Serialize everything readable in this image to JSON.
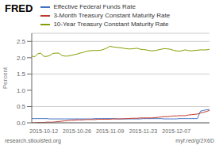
{
  "chart_data": {
    "type": "line",
    "title": "FRED",
    "y_label": "Percent",
    "annotations": [
      "research.stlouisfed.org",
      "myf.red/g/2X6D"
    ],
    "legend": "top",
    "grid": true,
    "ylim": [
      0.0,
      2.75
    ],
    "yticks": [
      {
        "value": 0.0,
        "label": "0.0"
      },
      0.5,
      {
        "value": 1.0,
        "label": "1.0"
      },
      1.5,
      {
        "value": 2.0,
        "label": "2.0"
      },
      2.5
    ],
    "categories": [
      null,
      null,
      null,
      null,
      "2015-10-12",
      null,
      null,
      null,
      null,
      null,
      null,
      null,
      null,
      null,
      null,
      "2015-10-26",
      null,
      null,
      null,
      null,
      null,
      null,
      null,
      null,
      null,
      null,
      "2015-11-09",
      null,
      null,
      null,
      null,
      null,
      null,
      null,
      null,
      null,
      null,
      "2015-11-23",
      null,
      null,
      null,
      null,
      null,
      null,
      null,
      null,
      null,
      null,
      "2015-12-07",
      null,
      null,
      null,
      null,
      null,
      null,
      null,
      null,
      null,
      null,
      null
    ],
    "series": [
      {
        "name": "Effective Federal Funds Rate",
        "color": "#4472c4",
        "values": [
          0.13,
          0.13,
          0.13,
          0.13,
          0.13,
          0.13,
          0.12,
          0.12,
          0.12,
          0.12,
          0.12,
          0.12,
          0.12,
          0.12,
          0.12,
          0.12,
          0.12,
          0.12,
          0.12,
          0.12,
          0.12,
          0.13,
          0.13,
          0.13,
          0.13,
          0.13,
          0.13,
          0.13,
          0.12,
          0.12,
          0.12,
          0.12,
          0.12,
          0.12,
          0.12,
          0.12,
          0.12,
          0.13,
          0.13,
          0.13,
          0.13,
          0.13,
          0.13,
          0.13,
          0.12,
          0.12,
          0.12,
          0.12,
          0.12,
          0.13,
          0.13,
          0.13,
          0.13,
          0.13,
          0.13,
          0.13,
          0.36,
          0.38,
          0.4,
          0.41
        ]
      },
      {
        "name": "3-Month Treasury Constant Maturity Rate",
        "color": "#c0392b",
        "values": [
          0.0,
          0.0,
          0.01,
          0.01,
          0.01,
          0.02,
          0.02,
          0.02,
          0.03,
          0.04,
          0.05,
          0.06,
          0.07,
          0.08,
          0.08,
          0.09,
          0.09,
          0.09,
          0.1,
          0.1,
          0.1,
          0.1,
          0.11,
          0.11,
          0.11,
          0.11,
          0.11,
          0.12,
          0.12,
          0.12,
          0.12,
          0.13,
          0.13,
          0.14,
          0.14,
          0.14,
          0.15,
          0.15,
          0.15,
          0.15,
          0.15,
          0.16,
          0.17,
          0.18,
          0.19,
          0.19,
          0.2,
          0.21,
          0.21,
          0.22,
          0.22,
          0.22,
          0.24,
          0.25,
          0.26,
          0.27,
          0.3,
          0.32,
          0.35,
          0.38
        ]
      },
      {
        "name": "10-Year Treasury Constant Maturity Rate",
        "color": "#7f9f00",
        "values": [
          2.05,
          2.03,
          2.12,
          2.14,
          2.04,
          2.04,
          2.07,
          2.13,
          2.14,
          2.14,
          2.07,
          2.05,
          2.05,
          2.07,
          2.09,
          2.11,
          2.14,
          2.16,
          2.19,
          2.21,
          2.22,
          2.22,
          2.22,
          2.23,
          2.26,
          2.3,
          2.35,
          2.33,
          2.32,
          2.31,
          2.3,
          2.28,
          2.27,
          2.27,
          2.28,
          2.29,
          2.26,
          2.25,
          2.24,
          2.22,
          2.21,
          2.22,
          2.24,
          2.26,
          2.28,
          2.27,
          2.26,
          2.23,
          2.21,
          2.2,
          2.22,
          2.24,
          2.22,
          2.21,
          2.22,
          2.23,
          2.24,
          2.24,
          2.24,
          2.26
        ]
      }
    ]
  }
}
